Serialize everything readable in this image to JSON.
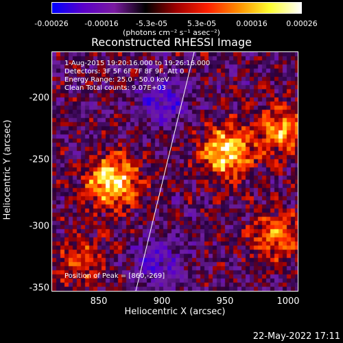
{
  "colorbar": {
    "ticks": [
      "-0.00026",
      "-0.00016",
      "-5.3e-05",
      "5.3e-05",
      "0.00016",
      "0.00026"
    ],
    "unit": "(photons cm⁻² s⁻¹ asec⁻²)",
    "colors": [
      "#0000ff",
      "#5a00c8",
      "#7a1aa0",
      "#000000",
      "#a00000",
      "#ff2000",
      "#ff9000",
      "#ffff30",
      "#ffffff"
    ]
  },
  "title": "Reconstructed RHESSI Image",
  "info": {
    "time": "1-Aug-2015 19:20:16.000 to 19:26:16.000",
    "detectors": "Detectors: 3F 5F 6F 7F 8F 9F, Att 0",
    "energy": "Energy Range: 25.0 - 50.0 keV",
    "clean": "Clean    Total counts: 9.07E+03",
    "peak": "Position of Peak = [860,-269]"
  },
  "axes": {
    "xlabel": "Heliocentric X (arcsec)",
    "ylabel": "Heliocentric Y (arcsec)",
    "xticks": [
      "850",
      "900",
      "950",
      "1000"
    ],
    "yticks": [
      "-200",
      "-250",
      "-300",
      "-350"
    ]
  },
  "footer": {
    "date": "22-May-2022 17:11"
  },
  "chart_data": {
    "type": "heatmap",
    "title": "Reconstructed RHESSI Image",
    "xlabel": "Heliocentric X (arcsec)",
    "ylabel": "Heliocentric Y (arcsec)",
    "xlim": [
      814,
      1002
    ],
    "ylim": [
      -352,
      -168
    ],
    "peak": [
      860,
      -269
    ],
    "sources": [
      {
        "x": 860,
        "y": -268,
        "amp": 1.0
      },
      {
        "x": 948,
        "y": -245,
        "amp": 0.95
      },
      {
        "x": 990,
        "y": -228,
        "amp": 0.7
      },
      {
        "x": 985,
        "y": -310,
        "amp": 0.6
      },
      {
        "x": 835,
        "y": -330,
        "amp": 0.45
      },
      {
        "x": 900,
        "y": -205,
        "amp": -0.55
      },
      {
        "x": 895,
        "y": -330,
        "amp": -0.5
      }
    ],
    "colorbar_range": [
      -0.00026,
      0.00026
    ]
  }
}
